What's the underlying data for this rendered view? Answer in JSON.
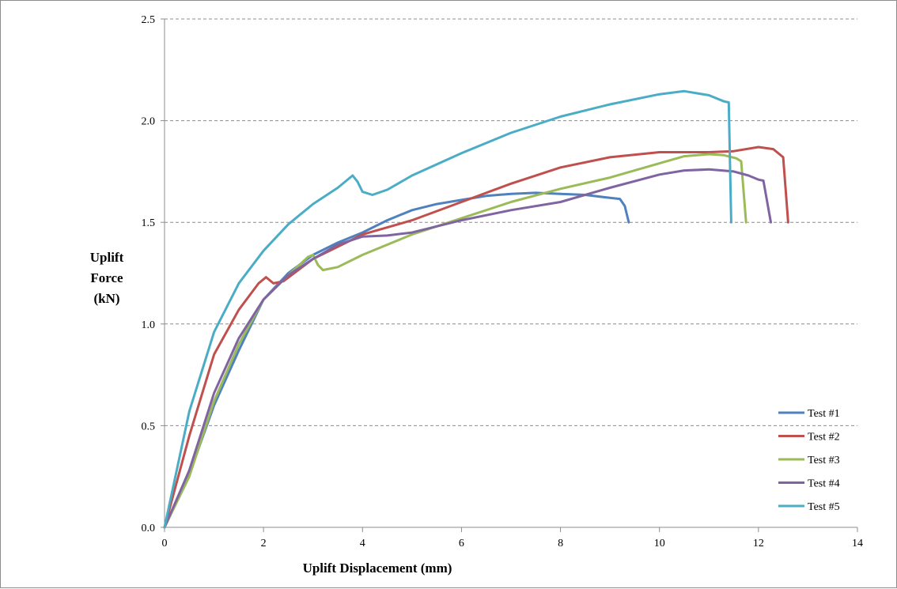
{
  "chart_data": {
    "type": "line",
    "xlabel": "Uplift Displacement (mm)",
    "ylabel": [
      "Uplift",
      "Force",
      "(kN)"
    ],
    "xlim": [
      0,
      14
    ],
    "ylim": [
      0,
      2.5
    ],
    "xticks": [
      0,
      2,
      4,
      6,
      8,
      10,
      12,
      14
    ],
    "yticks": [
      "0.0",
      "0.5",
      "1.0",
      "1.5",
      "2.0",
      "2.5"
    ],
    "grid": "horizontal dashed",
    "legend_position": "bottom-right",
    "series": [
      {
        "name": "Test #1",
        "color": "#4f81bd",
        "points": [
          [
            0,
            0
          ],
          [
            0.5,
            0.26
          ],
          [
            1.0,
            0.6
          ],
          [
            1.5,
            0.87
          ],
          [
            2.0,
            1.12
          ],
          [
            2.5,
            1.25
          ],
          [
            3.0,
            1.34
          ],
          [
            3.5,
            1.4
          ],
          [
            4.0,
            1.45
          ],
          [
            4.5,
            1.51
          ],
          [
            5.0,
            1.56
          ],
          [
            5.5,
            1.59
          ],
          [
            6.0,
            1.61
          ],
          [
            6.5,
            1.63
          ],
          [
            7.0,
            1.64
          ],
          [
            7.5,
            1.645
          ],
          [
            8.0,
            1.64
          ],
          [
            8.5,
            1.635
          ],
          [
            9.0,
            1.62
          ],
          [
            9.2,
            1.615
          ],
          [
            9.3,
            1.58
          ],
          [
            9.38,
            1.5
          ]
        ]
      },
      {
        "name": "Test #2",
        "color": "#c0504d",
        "points": [
          [
            0,
            0
          ],
          [
            0.5,
            0.45
          ],
          [
            1.0,
            0.85
          ],
          [
            1.5,
            1.07
          ],
          [
            1.9,
            1.2
          ],
          [
            2.05,
            1.23
          ],
          [
            2.2,
            1.2
          ],
          [
            2.4,
            1.21
          ],
          [
            3.0,
            1.32
          ],
          [
            4.0,
            1.44
          ],
          [
            5.0,
            1.51
          ],
          [
            6.0,
            1.6
          ],
          [
            7.0,
            1.69
          ],
          [
            8.0,
            1.77
          ],
          [
            9.0,
            1.82
          ],
          [
            10.0,
            1.845
          ],
          [
            11.0,
            1.845
          ],
          [
            11.5,
            1.85
          ],
          [
            12.0,
            1.87
          ],
          [
            12.3,
            1.86
          ],
          [
            12.5,
            1.82
          ],
          [
            12.6,
            1.5
          ]
        ]
      },
      {
        "name": "Test #3",
        "color": "#9bbb59",
        "points": [
          [
            0,
            0
          ],
          [
            0.5,
            0.25
          ],
          [
            1.0,
            0.62
          ],
          [
            1.5,
            0.9
          ],
          [
            2.0,
            1.12
          ],
          [
            2.5,
            1.24
          ],
          [
            2.9,
            1.33
          ],
          [
            3.0,
            1.34
          ],
          [
            3.1,
            1.29
          ],
          [
            3.2,
            1.265
          ],
          [
            3.5,
            1.28
          ],
          [
            4.0,
            1.34
          ],
          [
            5.0,
            1.44
          ],
          [
            6.0,
            1.52
          ],
          [
            7.0,
            1.6
          ],
          [
            8.0,
            1.665
          ],
          [
            9.0,
            1.72
          ],
          [
            10.0,
            1.79
          ],
          [
            10.5,
            1.825
          ],
          [
            11.0,
            1.835
          ],
          [
            11.3,
            1.83
          ],
          [
            11.55,
            1.815
          ],
          [
            11.65,
            1.8
          ],
          [
            11.75,
            1.5
          ]
        ]
      },
      {
        "name": "Test #4",
        "color": "#8064a2",
        "points": [
          [
            0,
            0
          ],
          [
            0.5,
            0.28
          ],
          [
            1.0,
            0.66
          ],
          [
            1.5,
            0.93
          ],
          [
            2.0,
            1.12
          ],
          [
            2.5,
            1.24
          ],
          [
            3.0,
            1.32
          ],
          [
            3.5,
            1.39
          ],
          [
            4.0,
            1.43
          ],
          [
            4.5,
            1.435
          ],
          [
            5.0,
            1.45
          ],
          [
            6.0,
            1.51
          ],
          [
            7.0,
            1.56
          ],
          [
            8.0,
            1.6
          ],
          [
            9.0,
            1.67
          ],
          [
            10.0,
            1.735
          ],
          [
            10.5,
            1.755
          ],
          [
            11.0,
            1.76
          ],
          [
            11.5,
            1.75
          ],
          [
            11.8,
            1.73
          ],
          [
            12.0,
            1.71
          ],
          [
            12.1,
            1.705
          ],
          [
            12.25,
            1.5
          ]
        ]
      },
      {
        "name": "Test #5",
        "color": "#4bacc6",
        "points": [
          [
            0,
            0
          ],
          [
            0.5,
            0.57
          ],
          [
            1.0,
            0.96
          ],
          [
            1.5,
            1.2
          ],
          [
            2.0,
            1.36
          ],
          [
            2.5,
            1.49
          ],
          [
            3.0,
            1.59
          ],
          [
            3.5,
            1.67
          ],
          [
            3.8,
            1.73
          ],
          [
            3.9,
            1.7
          ],
          [
            4.0,
            1.65
          ],
          [
            4.2,
            1.635
          ],
          [
            4.5,
            1.66
          ],
          [
            5.0,
            1.73
          ],
          [
            6.0,
            1.84
          ],
          [
            7.0,
            1.94
          ],
          [
            8.0,
            2.02
          ],
          [
            9.0,
            2.08
          ],
          [
            10.0,
            2.13
          ],
          [
            10.5,
            2.145
          ],
          [
            11.0,
            2.125
          ],
          [
            11.3,
            2.095
          ],
          [
            11.4,
            2.09
          ],
          [
            11.45,
            1.5
          ]
        ]
      }
    ]
  }
}
